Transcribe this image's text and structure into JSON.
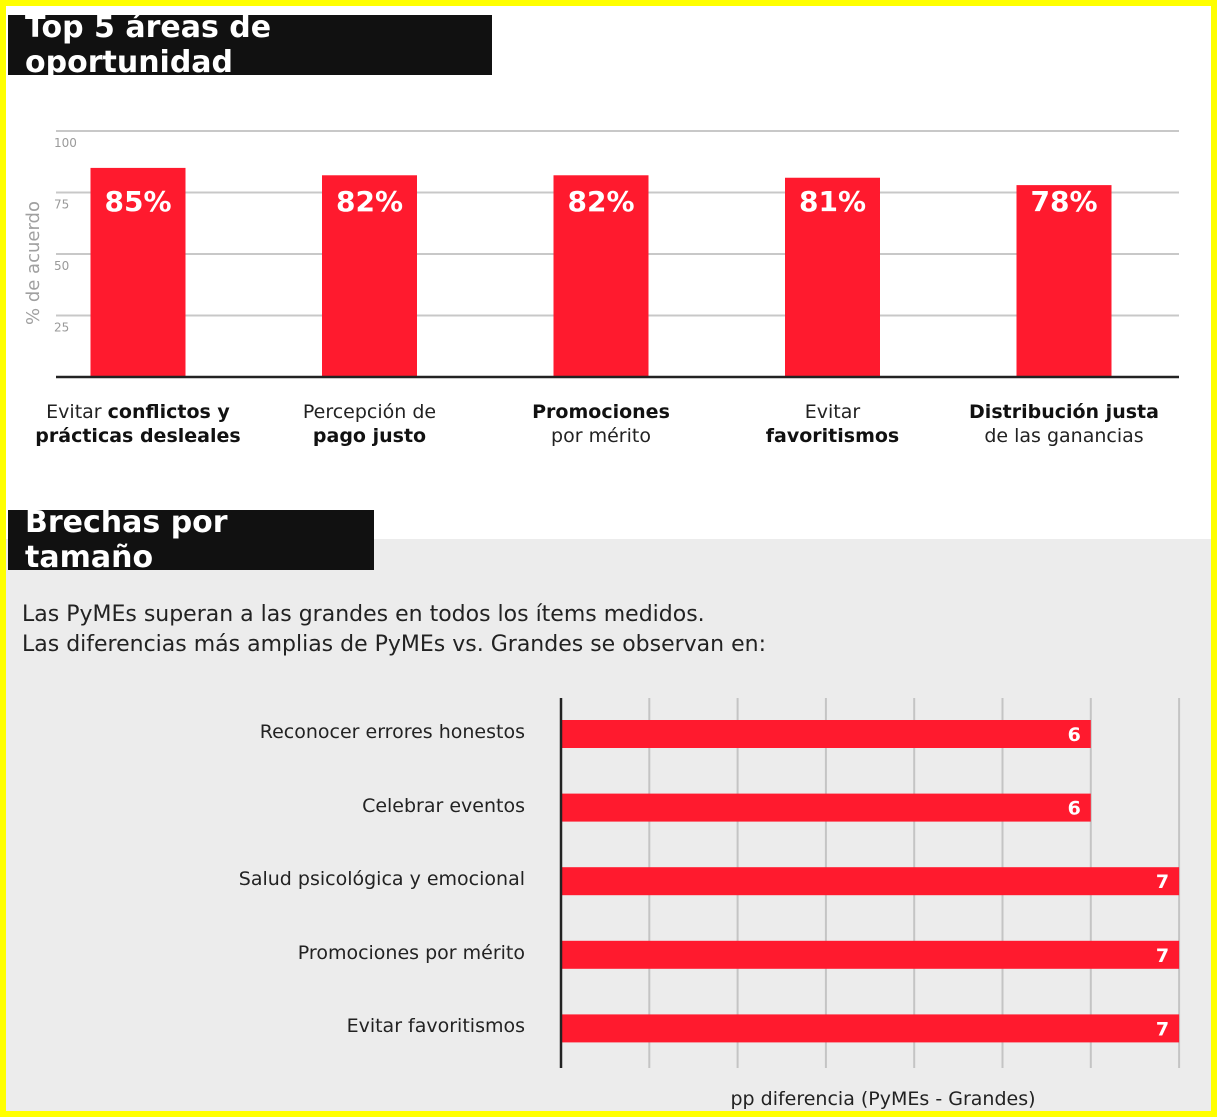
{
  "sections": {
    "top5_title": "Top 5 áreas de oportunidad",
    "brechas_title": "Brechas por tamaño",
    "intro_line1": "Las PyMEs superan a las grandes en todos los ítems medidos.",
    "intro_line2": "Las diferencias más amplias de PyMEs vs. Grandes se observan en:"
  },
  "colors": {
    "accent": "#ff1a2e",
    "frame": "#ffff00",
    "title_bg": "#111111",
    "panel_bg": "#ececec"
  },
  "chart_data": [
    {
      "type": "bar",
      "ylabel": "% de acuerdo",
      "ylim": [
        0,
        100
      ],
      "yticks": [
        "25",
        "50",
        "75",
        "100"
      ],
      "ytick_values": [
        25,
        50,
        75,
        100
      ],
      "grid": true,
      "values": [
        85,
        82,
        82,
        81,
        78
      ],
      "value_labels": [
        "85%",
        "82%",
        "82%",
        "81%",
        "78%"
      ],
      "categories": [
        "Evitar conflictos y prácticas desleales",
        "Percepción de pago justo",
        "Promociones por mérito",
        "Evitar favoritismos",
        "Distribución justa de las ganancias"
      ],
      "category_parts": [
        {
          "l1_normal": "Evitar ",
          "l1_bold": "conflictos y",
          "l2_normal": "",
          "l2_bold": "prácticas desleales"
        },
        {
          "l1_normal": "Percepción de",
          "l1_bold": "",
          "l2_normal": "",
          "l2_bold": "pago justo"
        },
        {
          "l1_normal": "",
          "l1_bold": "Promociones",
          "l2_normal": "por mérito",
          "l2_bold": ""
        },
        {
          "l1_normal": "Evitar",
          "l1_bold": "",
          "l2_normal": "",
          "l2_bold": "favoritismos"
        },
        {
          "l1_normal": "",
          "l1_bold": "Distribución justa",
          "l2_normal": "de las ganancias",
          "l2_bold": ""
        }
      ]
    },
    {
      "type": "bar",
      "orientation": "horizontal",
      "xlabel": "pp diferencia (PyMEs - Grandes)",
      "xlim": [
        0,
        7
      ],
      "grid": true,
      "categories": [
        "Reconocer errores honestos",
        "Celebrar eventos",
        "Salud psicológica y emocional",
        "Promociones por mérito",
        "Evitar favoritismos"
      ],
      "values": [
        6,
        6,
        7,
        7,
        7
      ],
      "value_labels": [
        "6",
        "6",
        "7",
        "7",
        "7"
      ]
    }
  ]
}
